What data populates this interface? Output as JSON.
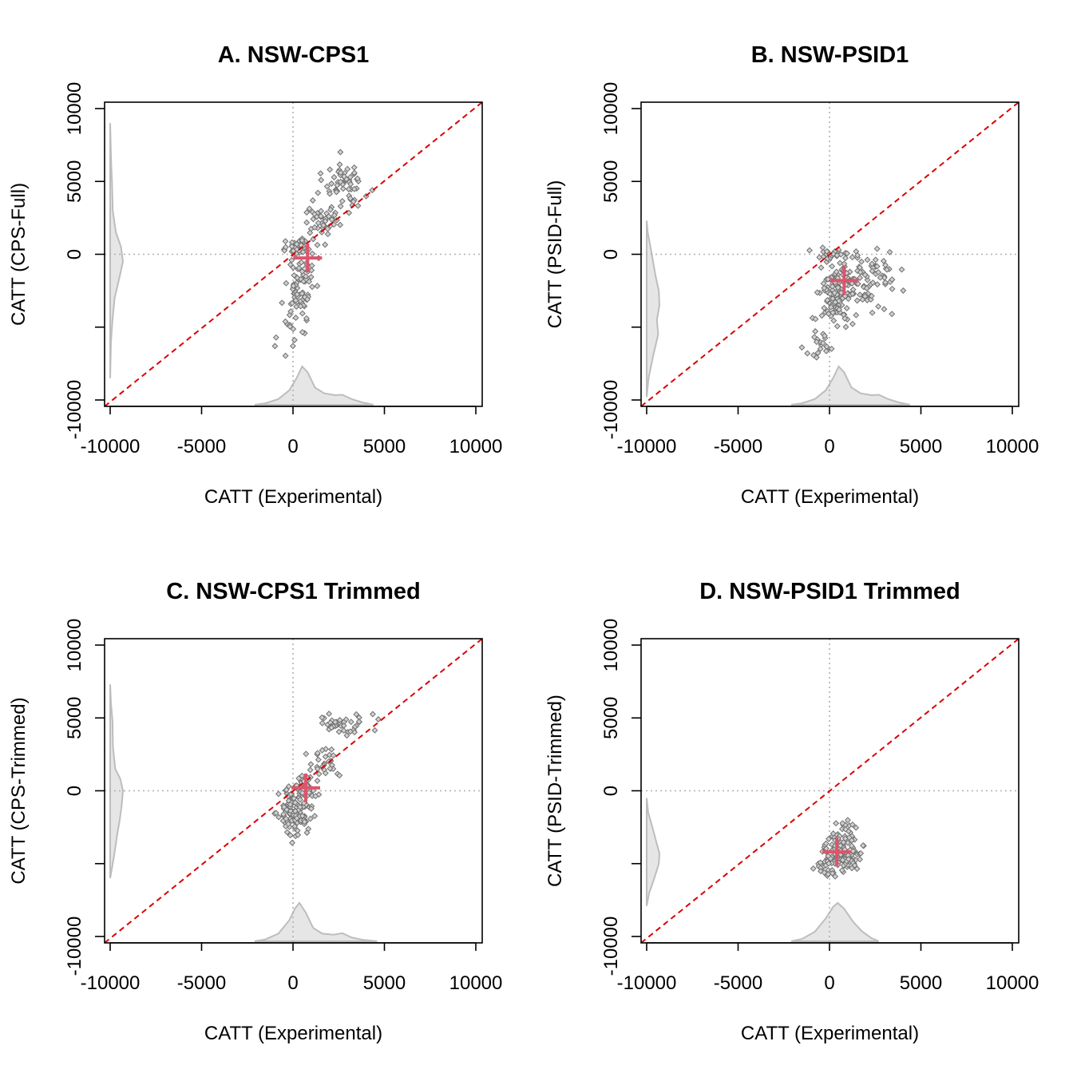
{
  "chart_data": [
    {
      "type": "scatter",
      "title": "A. NSW-CPS1",
      "xlabel": "CATT (Experimental)",
      "ylabel": "CATT (CPS-Full)",
      "xlim": [
        -10500,
        10500
      ],
      "ylim": [
        -10500,
        10000
      ],
      "xticks": [
        -10000,
        -5000,
        0,
        5000,
        10000
      ],
      "xtick_labels": [
        "-10000",
        "-5000",
        "0",
        "5000",
        "10000"
      ],
      "yticks": [
        -10000,
        -5000,
        0,
        5000,
        10000
      ],
      "ytick_labels": [
        "-10000",
        "",
        "0",
        "5000",
        "10000"
      ],
      "reference_lines": [
        "y = x (red dashed)",
        "x = 0 (gray dotted)",
        "y = 0 (gray dotted)"
      ],
      "mean_point": {
        "x": 800,
        "y": -250
      },
      "point_clusters": [
        {
          "n": 55,
          "cx": 2900,
          "cy": 4600,
          "sx": 550,
          "sy": 800
        },
        {
          "n": 45,
          "cx": 1600,
          "cy": 2500,
          "sx": 500,
          "sy": 800
        },
        {
          "n": 90,
          "cx": 400,
          "cy": -1800,
          "sx": 450,
          "sy": 1400
        },
        {
          "n": 30,
          "cx": 300,
          "cy": 600,
          "sx": 300,
          "sy": 300
        },
        {
          "n": 12,
          "cx": -300,
          "cy": -5300,
          "sx": 300,
          "sy": 1000
        }
      ],
      "point_color": "#6f6f6f",
      "mean_color": "#df536b",
      "x_density": [
        {
          "x": -2100,
          "d": 0.0
        },
        {
          "x": -1500,
          "d": 0.04
        },
        {
          "x": -800,
          "d": 0.15
        },
        {
          "x": -200,
          "d": 0.38
        },
        {
          "x": 200,
          "d": 0.7
        },
        {
          "x": 500,
          "d": 1.0
        },
        {
          "x": 800,
          "d": 0.85
        },
        {
          "x": 1200,
          "d": 0.45
        },
        {
          "x": 1700,
          "d": 0.3
        },
        {
          "x": 2300,
          "d": 0.25
        },
        {
          "x": 2700,
          "d": 0.26
        },
        {
          "x": 3200,
          "d": 0.15
        },
        {
          "x": 3800,
          "d": 0.06
        },
        {
          "x": 4400,
          "d": 0.0
        }
      ],
      "y_density": [
        {
          "y": -8500,
          "d": 0.0
        },
        {
          "y": -6000,
          "d": 0.06
        },
        {
          "y": -4500,
          "d": 0.18
        },
        {
          "y": -3000,
          "d": 0.35
        },
        {
          "y": -1500,
          "d": 0.75
        },
        {
          "y": -500,
          "d": 1.0
        },
        {
          "y": 500,
          "d": 0.85
        },
        {
          "y": 1500,
          "d": 0.45
        },
        {
          "y": 3000,
          "d": 0.2
        },
        {
          "y": 4800,
          "d": 0.15
        },
        {
          "y": 6500,
          "d": 0.07
        },
        {
          "y": 9000,
          "d": 0.0
        }
      ]
    },
    {
      "type": "scatter",
      "title": "B. NSW-PSID1",
      "xlabel": "CATT (Experimental)",
      "ylabel": "CATT (PSID-Full)",
      "xlim": [
        -10500,
        10500
      ],
      "ylim": [
        -10500,
        10000
      ],
      "xticks": [
        -10000,
        -5000,
        0,
        5000,
        10000
      ],
      "xtick_labels": [
        "-10000",
        "-5000",
        "0",
        "5000",
        "10000"
      ],
      "yticks": [
        -10000,
        -5000,
        0,
        5000,
        10000
      ],
      "ytick_labels": [
        "-10000",
        "",
        "0",
        "5000",
        "10000"
      ],
      "reference_lines": [
        "y = x (red dashed)",
        "x = 0 (gray dotted)",
        "y = 0 (gray dotted)"
      ],
      "mean_point": {
        "x": 800,
        "y": -1800
      },
      "point_clusters": [
        {
          "n": 110,
          "cx": 300,
          "cy": -2900,
          "sx": 500,
          "sy": 1200
        },
        {
          "n": 90,
          "cx": 1900,
          "cy": -1800,
          "sx": 800,
          "sy": 1000
        },
        {
          "n": 25,
          "cx": 400,
          "cy": 100,
          "sx": 450,
          "sy": 300
        },
        {
          "n": 20,
          "cx": -600,
          "cy": -6200,
          "sx": 400,
          "sy": 700
        }
      ],
      "point_color": "#6f6f6f",
      "mean_color": "#df536b",
      "x_density": [
        {
          "x": -2100,
          "d": 0.0
        },
        {
          "x": -1500,
          "d": 0.04
        },
        {
          "x": -800,
          "d": 0.15
        },
        {
          "x": -200,
          "d": 0.38
        },
        {
          "x": 200,
          "d": 0.7
        },
        {
          "x": 500,
          "d": 1.0
        },
        {
          "x": 800,
          "d": 0.85
        },
        {
          "x": 1200,
          "d": 0.45
        },
        {
          "x": 1700,
          "d": 0.3
        },
        {
          "x": 2300,
          "d": 0.25
        },
        {
          "x": 2700,
          "d": 0.26
        },
        {
          "x": 3200,
          "d": 0.15
        },
        {
          "x": 3800,
          "d": 0.06
        },
        {
          "x": 4400,
          "d": 0.0
        }
      ],
      "y_density": [
        {
          "y": -9800,
          "d": 0.0
        },
        {
          "y": -8500,
          "d": 0.15
        },
        {
          "y": -7000,
          "d": 0.5
        },
        {
          "y": -5500,
          "d": 0.9
        },
        {
          "y": -4500,
          "d": 0.8
        },
        {
          "y": -3500,
          "d": 1.0
        },
        {
          "y": -2500,
          "d": 0.95
        },
        {
          "y": -1500,
          "d": 0.7
        },
        {
          "y": -500,
          "d": 0.5
        },
        {
          "y": 500,
          "d": 0.3
        },
        {
          "y": 1500,
          "d": 0.08
        },
        {
          "y": 2300,
          "d": 0.0
        }
      ]
    },
    {
      "type": "scatter",
      "title": "C. NSW-CPS1 Trimmed",
      "xlabel": "CATT (Experimental)",
      "ylabel": "CATT (CPS-Trimmed)",
      "xlim": [
        -10500,
        10500
      ],
      "ylim": [
        -10500,
        10000
      ],
      "xticks": [
        -10000,
        -5000,
        0,
        5000,
        10000
      ],
      "xtick_labels": [
        "-10000",
        "-5000",
        "0",
        "5000",
        "10000"
      ],
      "yticks": [
        -10000,
        -5000,
        0,
        5000,
        10000
      ],
      "ytick_labels": [
        "-10000",
        "",
        "0",
        "5000",
        "10000"
      ],
      "reference_lines": [
        "y = x (red dashed)",
        "x = 0 (gray dotted)",
        "y = 0 (gray dotted)"
      ],
      "mean_point": {
        "x": 700,
        "y": 200
      },
      "point_clusters": [
        {
          "n": 40,
          "cx": 2800,
          "cy": 4600,
          "sx": 750,
          "sy": 350
        },
        {
          "n": 30,
          "cx": 1600,
          "cy": 1800,
          "sx": 500,
          "sy": 600
        },
        {
          "n": 110,
          "cx": 100,
          "cy": -1600,
          "sx": 450,
          "sy": 900
        },
        {
          "n": 40,
          "cx": 500,
          "cy": 200,
          "sx": 400,
          "sy": 450
        }
      ],
      "point_color": "#6f6f6f",
      "mean_color": "#df536b",
      "x_density": [
        {
          "x": -2100,
          "d": 0.0
        },
        {
          "x": -1500,
          "d": 0.05
        },
        {
          "x": -800,
          "d": 0.2
        },
        {
          "x": -200,
          "d": 0.55
        },
        {
          "x": 100,
          "d": 0.85
        },
        {
          "x": 350,
          "d": 1.0
        },
        {
          "x": 700,
          "d": 0.75
        },
        {
          "x": 1100,
          "d": 0.35
        },
        {
          "x": 1600,
          "d": 0.2
        },
        {
          "x": 2200,
          "d": 0.17
        },
        {
          "x": 2700,
          "d": 0.21
        },
        {
          "x": 3200,
          "d": 0.1
        },
        {
          "x": 3800,
          "d": 0.04
        },
        {
          "x": 4600,
          "d": 0.0
        }
      ],
      "y_density": [
        {
          "y": -6000,
          "d": 0.0
        },
        {
          "y": -4500,
          "d": 0.3
        },
        {
          "y": -3000,
          "d": 0.55
        },
        {
          "y": -2000,
          "d": 0.75
        },
        {
          "y": -1000,
          "d": 0.9
        },
        {
          "y": 0,
          "d": 1.0
        },
        {
          "y": 800,
          "d": 0.8
        },
        {
          "y": 1500,
          "d": 0.4
        },
        {
          "y": 3000,
          "d": 0.22
        },
        {
          "y": 4800,
          "d": 0.18
        },
        {
          "y": 6000,
          "d": 0.06
        },
        {
          "y": 7300,
          "d": 0.0
        }
      ]
    },
    {
      "type": "scatter",
      "title": "D. NSW-PSID1 Trimmed",
      "xlabel": "CATT (Experimental)",
      "ylabel": "CATT (PSID-Trimmed)",
      "xlim": [
        -10500,
        10500
      ],
      "ylim": [
        -10500,
        10000
      ],
      "xticks": [
        -10000,
        -5000,
        0,
        5000,
        10000
      ],
      "xtick_labels": [
        "-10000",
        "-5000",
        "0",
        "5000",
        "10000"
      ],
      "yticks": [
        -10000,
        -5000,
        0,
        5000,
        10000
      ],
      "ytick_labels": [
        "-10000",
        "",
        "0",
        "5000",
        "10000"
      ],
      "reference_lines": [
        "y = x (red dashed)",
        "x = 0 (gray dotted)",
        "y = 0 (gray dotted)"
      ],
      "mean_point": {
        "x": 400,
        "y": -4200
      },
      "point_clusters": [
        {
          "n": 130,
          "cx": 700,
          "cy": -4300,
          "sx": 550,
          "sy": 600
        },
        {
          "n": 20,
          "cx": -400,
          "cy": -5200,
          "sx": 350,
          "sy": 300
        },
        {
          "n": 15,
          "cx": 900,
          "cy": -2400,
          "sx": 350,
          "sy": 400
        }
      ],
      "point_color": "#6f6f6f",
      "mean_color": "#df536b",
      "x_density": [
        {
          "x": -2100,
          "d": 0.0
        },
        {
          "x": -1500,
          "d": 0.06
        },
        {
          "x": -800,
          "d": 0.25
        },
        {
          "x": -200,
          "d": 0.6
        },
        {
          "x": 200,
          "d": 0.9
        },
        {
          "x": 450,
          "d": 1.0
        },
        {
          "x": 800,
          "d": 0.85
        },
        {
          "x": 1300,
          "d": 0.5
        },
        {
          "x": 1800,
          "d": 0.25
        },
        {
          "x": 2300,
          "d": 0.08
        },
        {
          "x": 2700,
          "d": 0.0
        }
      ],
      "y_density": [
        {
          "y": -7900,
          "d": 0.0
        },
        {
          "y": -7000,
          "d": 0.2
        },
        {
          "y": -6000,
          "d": 0.6
        },
        {
          "y": -5000,
          "d": 0.95
        },
        {
          "y": -4300,
          "d": 1.0
        },
        {
          "y": -3500,
          "d": 0.75
        },
        {
          "y": -2500,
          "d": 0.45
        },
        {
          "y": -1500,
          "d": 0.12
        },
        {
          "y": -500,
          "d": 0.0
        }
      ]
    }
  ]
}
